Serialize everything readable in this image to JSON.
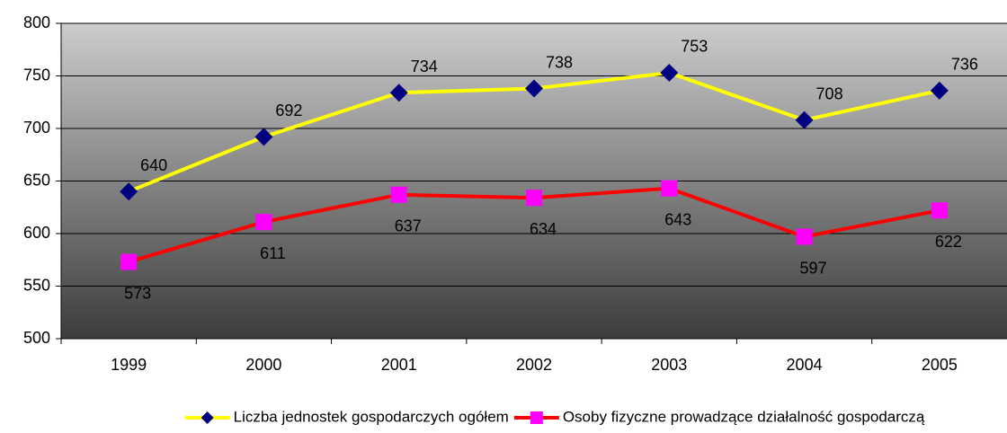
{
  "chart_data": {
    "type": "line",
    "categories": [
      "1999",
      "2000",
      "2001",
      "2002",
      "2003",
      "2004",
      "2005"
    ],
    "series": [
      {
        "name": "Liczba jednostek gospodarczych ogółem",
        "color": "#ffff00",
        "marker_color": "#000080",
        "marker": "diamond",
        "values": [
          640,
          692,
          734,
          738,
          753,
          708,
          736
        ]
      },
      {
        "name": "Osoby fizyczne prowadzące działalność gospodarczą",
        "color": "#ff0000",
        "marker_color": "#ff00ff",
        "marker": "square",
        "values": [
          573,
          611,
          637,
          634,
          643,
          597,
          622
        ]
      }
    ],
    "ylim": [
      500,
      800
    ],
    "yticks": [
      500,
      550,
      600,
      650,
      700,
      750,
      800
    ],
    "grid": true,
    "legend": "bottom"
  }
}
